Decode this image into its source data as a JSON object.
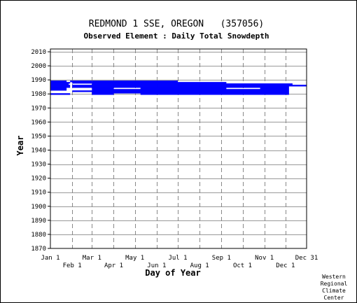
{
  "chart_data": {
    "type": "heatmap",
    "title": "REDMOND 1 SSE, OREGON   (357056)",
    "subtitle": "Observed Element : Daily Total Snowdepth",
    "xlabel": "Day of Year",
    "ylabel": "Year",
    "credit": [
      "Western",
      "Regional",
      "Climate",
      "Center"
    ],
    "xlim": [
      1,
      365
    ],
    "ylim": [
      1870,
      2012
    ],
    "yticks": [
      1870,
      1880,
      1890,
      1900,
      1910,
      1920,
      1930,
      1940,
      1950,
      1960,
      1970,
      1980,
      1990,
      2000,
      2010
    ],
    "xticks_top": [
      {
        "label": "Jan 1",
        "day": 1
      },
      {
        "label": "Mar 1",
        "day": 60
      },
      {
        "label": "May 1",
        "day": 121
      },
      {
        "label": "Jul 1",
        "day": 182
      },
      {
        "label": "Sep 1",
        "day": 244
      },
      {
        "label": "Nov 1",
        "day": 305
      },
      {
        "label": "Dec 31",
        "day": 365
      }
    ],
    "xticks_bottom": [
      {
        "label": "Feb 1",
        "day": 32
      },
      {
        "label": "Apr 1",
        "day": 91
      },
      {
        "label": "Jun 1",
        "day": 152
      },
      {
        "label": "Aug 1",
        "day": 213
      },
      {
        "label": "Oct 1",
        "day": 274
      },
      {
        "label": "Dec 1",
        "day": 335
      }
    ],
    "grid": true,
    "bar_color": "#0000ff",
    "records": [
      {
        "year": 1980,
        "start": 1,
        "end": 29
      },
      {
        "year": 1980,
        "start": 60,
        "end": 91
      },
      {
        "year": 1980,
        "start": 129,
        "end": 340
      },
      {
        "year": 1981,
        "start": 60,
        "end": 340
      },
      {
        "year": 1982,
        "start": 32,
        "end": 340
      },
      {
        "year": 1983,
        "start": 1,
        "end": 24
      },
      {
        "year": 1983,
        "start": 60,
        "end": 340
      },
      {
        "year": 1984,
        "start": 1,
        "end": 24
      },
      {
        "year": 1984,
        "start": 60,
        "end": 91
      },
      {
        "year": 1984,
        "start": 129,
        "end": 251
      },
      {
        "year": 1984,
        "start": 299,
        "end": 340
      },
      {
        "year": 1985,
        "start": 1,
        "end": 29
      },
      {
        "year": 1985,
        "start": 32,
        "end": 340
      },
      {
        "year": 1986,
        "start": 1,
        "end": 29
      },
      {
        "year": 1986,
        "start": 32,
        "end": 365
      },
      {
        "year": 1987,
        "start": 1,
        "end": 27
      },
      {
        "year": 1987,
        "start": 60,
        "end": 345
      },
      {
        "year": 1988,
        "start": 1,
        "end": 29
      },
      {
        "year": 1988,
        "start": 32,
        "end": 251
      },
      {
        "year": 1989,
        "start": 1,
        "end": 24
      },
      {
        "year": 1989,
        "start": 29,
        "end": 60
      },
      {
        "year": 1989,
        "start": 60,
        "end": 182
      }
    ]
  }
}
